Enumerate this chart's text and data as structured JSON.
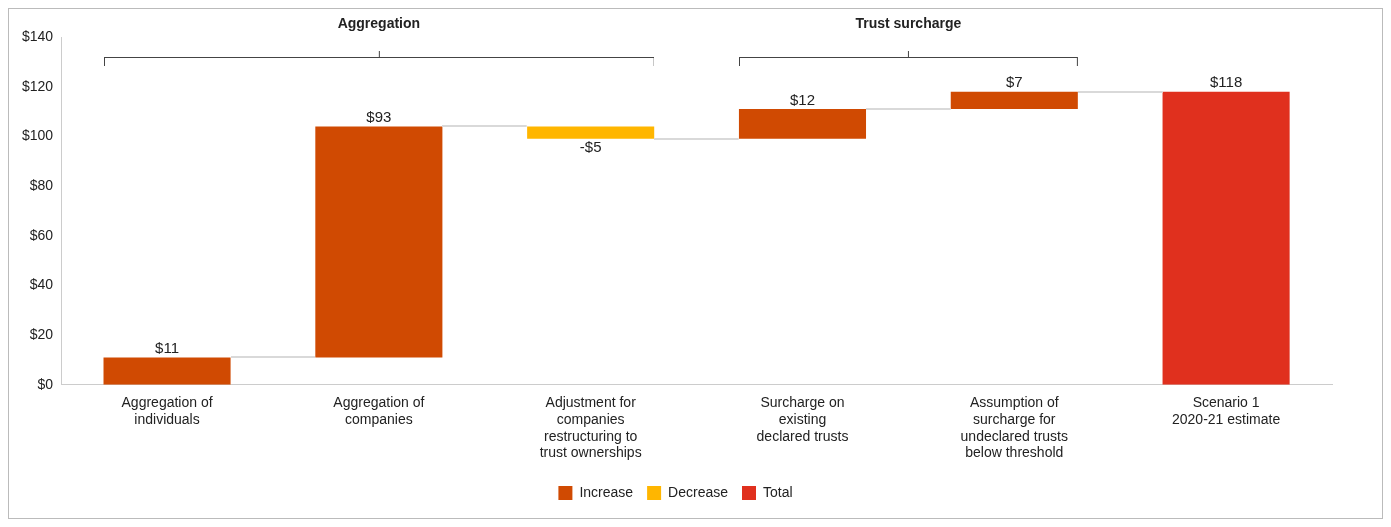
{
  "chart_data": {
    "type": "bar",
    "categories": [
      "Aggregation of\nindividuals",
      "Aggregation of\ncompanies",
      "Adjustment for\ncompanies\nrestructuring to\ntrust ownerships",
      "Surcharge on\nexisting\ndeclared trusts",
      "Assumption of\nsurcharge for\nundeclared trusts\nbelow threshold",
      "Scenario 1\n2020-21 estimate"
    ],
    "series": [
      {
        "name": "Increase",
        "color": "#d04a02",
        "values": [
          11,
          93,
          null,
          12,
          7,
          null
        ],
        "base": [
          0,
          11,
          null,
          99,
          111,
          null
        ],
        "value_labels": [
          "$11",
          "$93",
          null,
          "$12",
          "$7",
          null
        ]
      },
      {
        "name": "Decrease",
        "color": "#ffb600",
        "values": [
          null,
          null,
          -5,
          null,
          null,
          null
        ],
        "base": [
          null,
          null,
          104,
          null,
          null,
          null
        ],
        "value_labels": [
          null,
          null,
          "-$5",
          null,
          null,
          null
        ]
      },
      {
        "name": "Total",
        "color": "#e0301e",
        "values": [
          null,
          null,
          null,
          null,
          null,
          118
        ],
        "base": [
          null,
          null,
          null,
          null,
          null,
          0
        ],
        "value_labels": [
          null,
          null,
          null,
          null,
          null,
          "$118"
        ]
      }
    ],
    "ylim": [
      0,
      140
    ],
    "yticks": [
      {
        "value": 0,
        "label": "$0"
      },
      {
        "value": 20,
        "label": "$20"
      },
      {
        "value": 40,
        "label": "$40"
      },
      {
        "value": 60,
        "label": "$60"
      },
      {
        "value": 80,
        "label": "$80"
      },
      {
        "value": 100,
        "label": "$100"
      },
      {
        "value": 120,
        "label": "$120"
      },
      {
        "value": 140,
        "label": "$140"
      }
    ],
    "annotations": [
      "Aggregation",
      "Trust surcharge"
    ],
    "grid": false,
    "legend": "bottom"
  }
}
